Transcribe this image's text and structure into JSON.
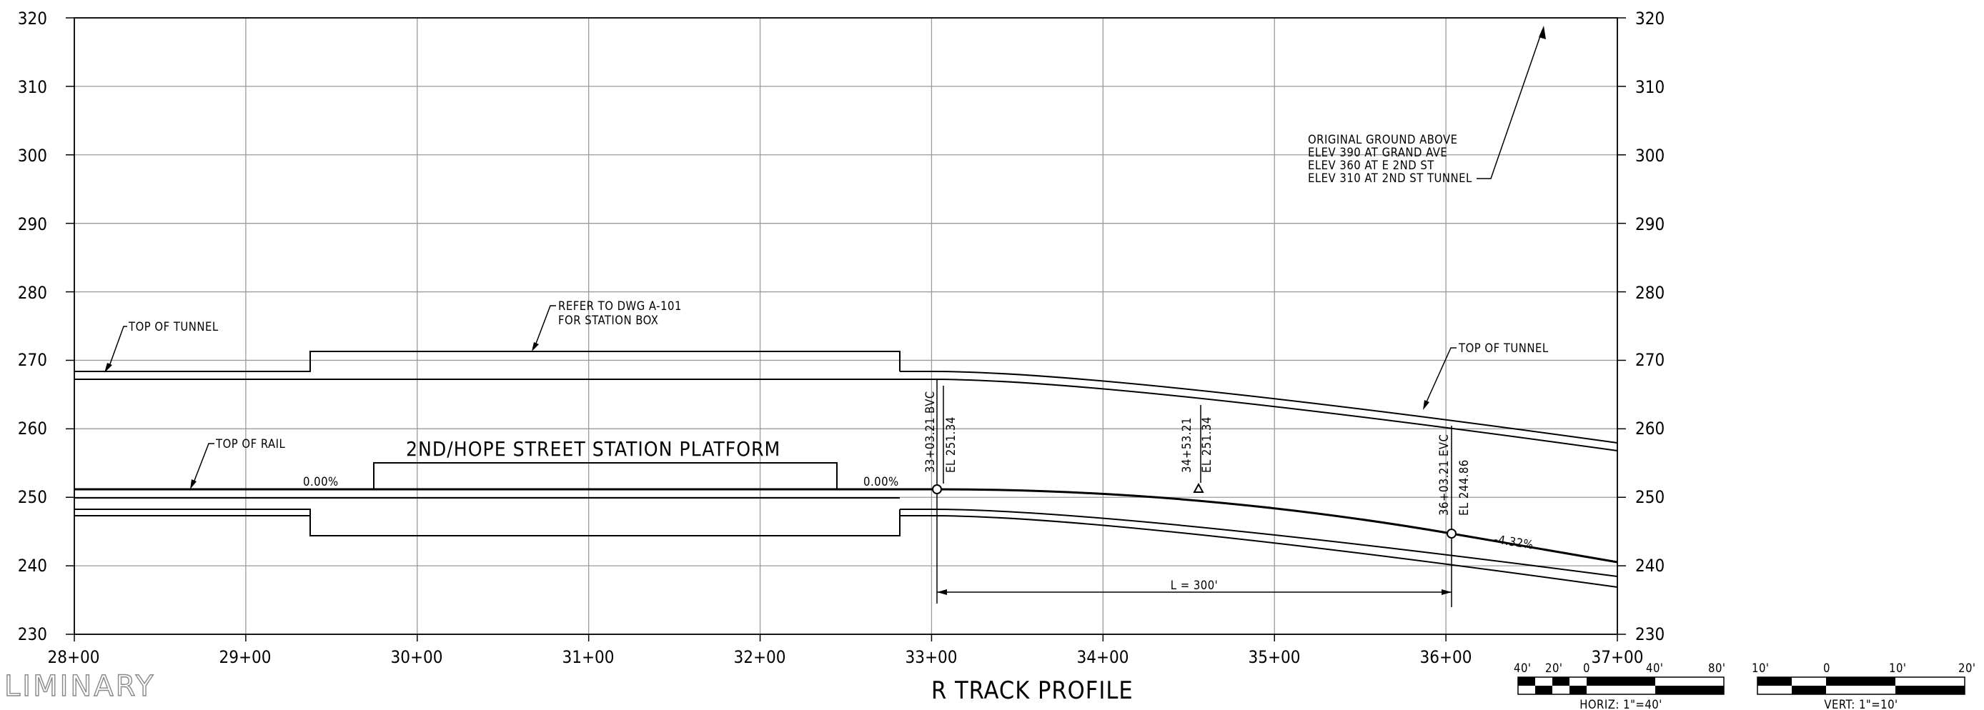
{
  "axes": {
    "elev_ticks": [
      "320",
      "310",
      "300",
      "290",
      "280",
      "270",
      "260",
      "250",
      "240",
      "230"
    ],
    "station_ticks": [
      "28+00",
      "29+00",
      "30+00",
      "31+00",
      "32+00",
      "33+00",
      "34+00",
      "35+00",
      "36+00",
      "37+00"
    ],
    "elev_range": [
      230,
      320
    ],
    "station_range_ft": [
      2800,
      3700
    ],
    "grid": true
  },
  "labels": {
    "top_of_tunnel_left": "TOP OF TUNNEL",
    "top_of_tunnel_right": "TOP OF TUNNEL",
    "top_of_rail": "TOP OF RAIL",
    "refer_line1": "REFER TO DWG A-101",
    "refer_line2": "FOR STATION BOX",
    "original_ground": [
      "ORIGINAL GROUND ABOVE",
      "ELEV 390 AT GRAND AVE",
      "ELEV 360 AT E 2ND ST",
      "ELEV 310 AT 2ND ST TUNNEL"
    ],
    "platform": "2ND/HOPE STREET STATION PLATFORM",
    "grade_left": "0.00%",
    "grade_mid": "0.00%",
    "grade_right": "-4.32%",
    "bvc_station": "33+03.21 BVC",
    "bvc_elev": "EL 251.34",
    "pvi_station": "34+53.21",
    "pvi_elev": "EL 251.34",
    "evc_station": "36+03.21 EVC",
    "evc_elev": "EL 244.86",
    "vc_length": "L = 300'",
    "title": "R TRACK PROFILE",
    "stamp": "LIMINARY"
  },
  "profile": {
    "bvc": {
      "station_ft": 3303.21,
      "elev": 251.34
    },
    "pvi": {
      "station_ft": 3453.21,
      "elev": 251.34
    },
    "evc": {
      "station_ft": 3603.21,
      "elev": 244.86
    },
    "grade_in_pct": 0.0,
    "grade_out_pct": -4.32,
    "curve_length_ft": 300
  },
  "scales": {
    "horizontal": {
      "ticks": [
        "40'",
        "20'",
        "0",
        "40'",
        "80'"
      ],
      "label": "HORIZ: 1\"=40'"
    },
    "vertical": {
      "ticks": [
        "10'",
        "0",
        "10'",
        "20'"
      ],
      "label": "VERT: 1\"=10'"
    }
  }
}
